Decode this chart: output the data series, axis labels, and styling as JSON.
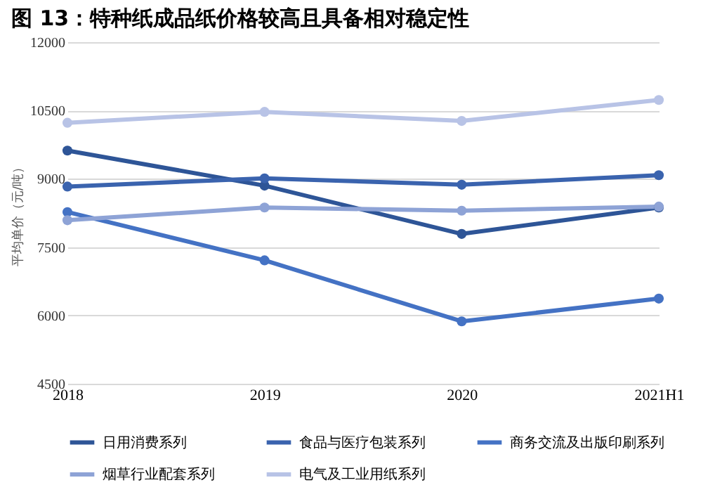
{
  "chart_data": {
    "type": "line",
    "title": "图 13：特种纸成品纸价格较高且具备相对稳定性",
    "ylabel": "平均单价（元/吨）",
    "categories": [
      "2018",
      "2019",
      "2020",
      "2021H1"
    ],
    "series": [
      {
        "name": "日用消费系列",
        "color": "#2e5597",
        "values": [
          9620,
          8850,
          7790,
          8370
        ]
      },
      {
        "name": "食品与医疗包装系列",
        "color": "#3a63ae",
        "values": [
          8830,
          9010,
          8870,
          9080
        ]
      },
      {
        "name": "商务交流及出版印刷系列",
        "color": "#4472c4",
        "values": [
          8270,
          7210,
          5870,
          6370
        ]
      },
      {
        "name": "烟草行业配套系列",
        "color": "#8ea3d6",
        "values": [
          8090,
          8370,
          8300,
          8390
        ]
      },
      {
        "name": "电气及工业用纸系列",
        "color": "#b8c3e6",
        "values": [
          10230,
          10470,
          10270,
          10730
        ]
      }
    ],
    "ylim": [
      4500,
      12000
    ],
    "yticks": [
      4500,
      6000,
      7500,
      9000,
      10500,
      12000
    ],
    "grid": "y",
    "legend": "bottom",
    "marker": "circle",
    "line_style": "solid"
  }
}
